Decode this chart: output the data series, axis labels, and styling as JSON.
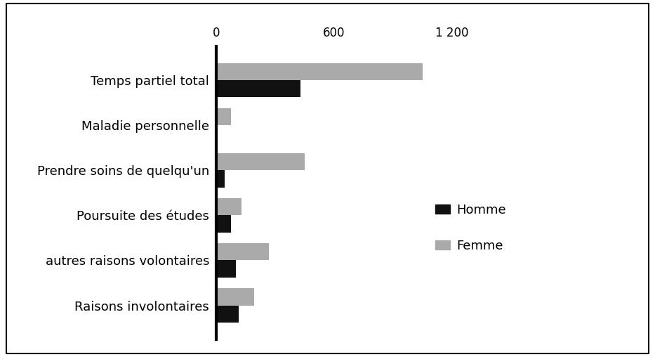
{
  "categories": [
    "Temps partiel total",
    "Maladie personnelle",
    "Prendre soins de quelqu'un",
    "Poursuite des études",
    "autres raisons volontaires",
    "Raisons involontaires"
  ],
  "homme_values": [
    430,
    0,
    45,
    75,
    100,
    115
  ],
  "femme_values": [
    1050,
    75,
    450,
    130,
    270,
    195
  ],
  "homme_color": "#111111",
  "femme_color": "#aaaaaa",
  "xlim_max": 1300,
  "xticks": [
    0,
    600,
    1200
  ],
  "xtick_labels": [
    "0",
    "600",
    "1 200"
  ],
  "legend_homme": "Homme",
  "legend_femme": "Femme",
  "bar_height": 0.38,
  "background_color": "#ffffff",
  "text_color": "#000000",
  "fontsize_ticks": 12,
  "fontsize_labels": 13,
  "fontsize_legend": 13
}
